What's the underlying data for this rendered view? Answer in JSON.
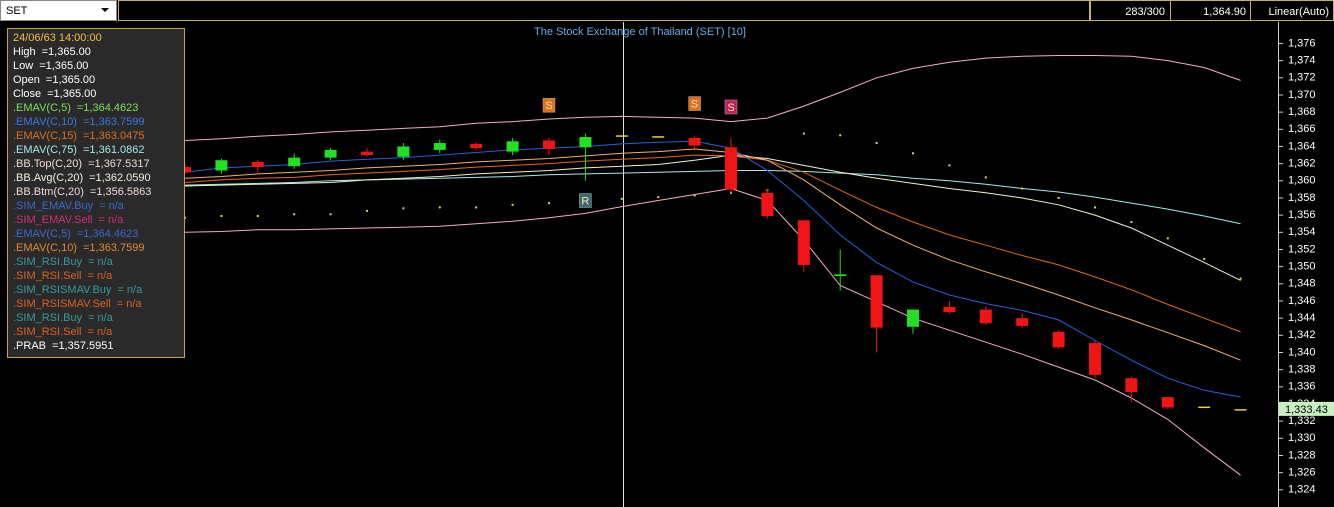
{
  "toolbar": {
    "symbol": "SET",
    "count": "283/300",
    "price": "1,364.90",
    "scale": "Linear(Auto)"
  },
  "info_panel": {
    "lines": [
      {
        "label": "24/06/63 14:00:00",
        "color": "#f0c040"
      },
      {
        "label": "High",
        "value": "=1,365.00",
        "color": "#ffffff"
      },
      {
        "label": "Low",
        "value": "=1,365.00",
        "color": "#ffffff"
      },
      {
        "label": "Open",
        "value": "=1,365.00",
        "color": "#ffffff"
      },
      {
        "label": "Close",
        "value": "=1,365.00",
        "color": "#ffffff"
      },
      {
        "label": ".EMAV(C,5)",
        "value": "=1,364.4623",
        "color": "#7ce05a"
      },
      {
        "label": ".EMAV(C,10)",
        "value": "=1,363.7599",
        "color": "#3a78e0"
      },
      {
        "label": ".EMAV(C,15)",
        "value": "=1,363.0475",
        "color": "#e0701a"
      },
      {
        "label": ".EMAV(C,75)",
        "value": "=1,361.0862",
        "color": "#a8e8e8"
      },
      {
        "label": ".BB.Top(C,20)",
        "value": "=1,367.5317",
        "color": "#f0d8d8"
      },
      {
        "label": ".BB.Avg(C,20)",
        "value": "=1,362.0590",
        "color": "#f0f0e0"
      },
      {
        "label": ".BB.Btm(C,20)",
        "value": "=1,356.5863",
        "color": "#f0d8d8"
      },
      {
        "label": ".SIM_EMAV.Buy",
        "value": "= n/a",
        "color": "#3a6ad0"
      },
      {
        "label": ".SIM_EMAV.Sell",
        "value": "= n/a",
        "color": "#d03070"
      },
      {
        "label": ".EMAV(C,5)",
        "value": "=1,364.4623",
        "color": "#3a6ad0"
      },
      {
        "label": ".EMAV(C,10)",
        "value": "=1,363.7599",
        "color": "#e08a30"
      },
      {
        "label": ".SIM_RSI.Buy",
        "value": "= n/a",
        "color": "#3a9a9a"
      },
      {
        "label": ".SIM_RSI.Sell",
        "value": "= n/a",
        "color": "#e06020"
      },
      {
        "label": ".SIM_RSISMAV.Buy",
        "value": "= n/a",
        "color": "#3a9a9a"
      },
      {
        "label": ".SIM_RSISMAV.Sell",
        "value": "= n/a",
        "color": "#e06020"
      },
      {
        "label": ".SIM_RSI.Buy",
        "value": "= n/a",
        "color": "#3a9a9a"
      },
      {
        "label": ".SIM_RSI.Sell",
        "value": "= n/a",
        "color": "#e06020"
      },
      {
        "label": ".PRAB",
        "value": "=1,357.5951",
        "color": "#ffffff"
      }
    ]
  },
  "chart_data": {
    "type": "candlestick",
    "title": "The Stock Exchange of Thailand (SET) [10]",
    "categories": [
      null,
      null,
      null,
      null,
      null,
      null,
      null,
      null,
      null,
      null,
      null,
      null,
      null,
      null,
      null,
      null,
      null,
      null,
      null,
      null,
      null,
      null,
      null,
      null,
      null,
      null,
      null,
      null,
      null,
      null
    ],
    "open": [
      1361.6,
      1361.2,
      1362.2,
      1361.7,
      1362.7,
      1363.4,
      1362.8,
      1363.6,
      1364.3,
      1363.4,
      1364.7,
      1363.9,
      1365.3,
      1365.2,
      1365.0,
      1363.9,
      1358.6,
      1355.4,
      1348.9,
      1349.0,
      1343.0,
      1345.3,
      1345.0,
      1344.0,
      1342.4,
      1341.1,
      1337.0,
      1334.8,
      1333.7,
      1333.4
    ],
    "high": [
      1362.0,
      1362.6,
      1362.4,
      1363.2,
      1363.8,
      1363.8,
      1364.4,
      1364.8,
      1364.5,
      1365.0,
      1365.0,
      1365.5,
      1365.3,
      1365.2,
      1365.2,
      1365.0,
      1359.0,
      1355.4,
      1352.0,
      1349.0,
      1345.0,
      1346.0,
      1345.4,
      1344.6,
      1342.6,
      1341.4,
      1337.2,
      1334.8,
      1333.7,
      1333.4
    ],
    "low": [
      1360.8,
      1360.8,
      1361.0,
      1361.4,
      1362.4,
      1362.8,
      1362.4,
      1363.2,
      1363.6,
      1363.0,
      1363.0,
      1360.0,
      1365.3,
      1365.2,
      1363.8,
      1358.6,
      1355.6,
      1349.4,
      1347.2,
      1340.0,
      1342.2,
      1344.5,
      1343.2,
      1342.8,
      1340.4,
      1337.0,
      1334.2,
      1333.4,
      1333.7,
      1333.4
    ],
    "close": [
      1361.0,
      1362.4,
      1361.6,
      1362.7,
      1363.6,
      1363.0,
      1364.0,
      1364.4,
      1363.8,
      1364.6,
      1363.7,
      1365.1,
      1365.3,
      1365.2,
      1364.1,
      1359.0,
      1355.9,
      1350.2,
      1349.1,
      1342.9,
      1345.0,
      1344.7,
      1343.4,
      1343.1,
      1340.6,
      1337.4,
      1335.4,
      1333.6,
      1333.7,
      1333.4
    ],
    "up_color": "#22e022",
    "down_color": "#f01414",
    "flat_color": "#e8d040",
    "series": [
      {
        "color": "#f0b0c0",
        "values": [
          1364.7,
          1364.9,
          1365.2,
          1365.4,
          1365.7,
          1365.9,
          1366.1,
          1366.3,
          1366.7,
          1366.9,
          1367.2,
          1367.4,
          1367.5,
          1367.4,
          1367.3,
          1366.9,
          1367.3,
          1368.7,
          1370.3,
          1372.0,
          1373.1,
          1373.8,
          1374.3,
          1374.5,
          1374.6,
          1374.6,
          1374.5,
          1374.0,
          1373.2,
          1371.7
        ]
      },
      {
        "color": "#f0b0c0",
        "values": [
          1354.0,
          1354.1,
          1354.3,
          1354.3,
          1354.4,
          1354.5,
          1354.6,
          1354.7,
          1355.0,
          1355.3,
          1355.7,
          1356.2,
          1357.0,
          1357.7,
          1358.4,
          1359.1,
          1357.7,
          1353.1,
          1347.8,
          1345.9,
          1344.0,
          1342.6,
          1341.2,
          1339.8,
          1338.3,
          1336.8,
          1334.7,
          1332.2,
          1328.9,
          1325.7
        ]
      },
      {
        "color": "#a8e8e8",
        "values": [
          1359.5,
          1359.6,
          1359.7,
          1359.8,
          1360.0,
          1360.1,
          1360.2,
          1360.3,
          1360.4,
          1360.5,
          1360.7,
          1360.8,
          1360.9,
          1361.0,
          1361.1,
          1361.2,
          1361.2,
          1361.1,
          1360.9,
          1360.7,
          1360.3,
          1360.0,
          1359.6,
          1359.1,
          1358.7,
          1358.1,
          1357.4,
          1356.7,
          1355.9,
          1355.0
        ]
      },
      {
        "color": "#f0f0d0",
        "values": [
          1359.4,
          1359.5,
          1359.6,
          1359.7,
          1359.8,
          1360.1,
          1360.3,
          1360.5,
          1360.8,
          1361.0,
          1361.2,
          1361.5,
          1361.7,
          1361.9,
          1362.4,
          1363.0,
          1362.6,
          1361.8,
          1361.0,
          1360.3,
          1359.7,
          1359.1,
          1358.6,
          1358.0,
          1357.2,
          1356.0,
          1354.5,
          1352.5,
          1350.5,
          1348.4
        ]
      },
      {
        "color": "#e06a10",
        "values": [
          1359.8,
          1360.1,
          1360.3,
          1360.4,
          1360.7,
          1360.9,
          1361.1,
          1361.3,
          1361.6,
          1361.8,
          1362.0,
          1362.3,
          1362.5,
          1362.7,
          1363.0,
          1362.9,
          1362.4,
          1361.0,
          1358.9,
          1356.9,
          1355.2,
          1353.7,
          1352.5,
          1351.3,
          1350.2,
          1348.8,
          1347.3,
          1345.6,
          1344.0,
          1342.4
        ]
      },
      {
        "color": "#f0b070",
        "values": [
          1360.3,
          1360.5,
          1360.8,
          1361.0,
          1361.2,
          1361.5,
          1361.7,
          1361.9,
          1362.2,
          1362.4,
          1362.6,
          1362.9,
          1363.2,
          1363.4,
          1363.7,
          1363.3,
          1362.4,
          1360.1,
          1357.2,
          1354.5,
          1352.5,
          1350.8,
          1349.4,
          1348.1,
          1346.7,
          1345.2,
          1343.8,
          1342.3,
          1340.8,
          1339.1
        ]
      },
      {
        "color": "#2a5fd8",
        "values": [
          1361.0,
          1361.5,
          1361.7,
          1361.9,
          1362.3,
          1362.5,
          1362.7,
          1363.0,
          1363.3,
          1363.6,
          1363.8,
          1364.0,
          1364.3,
          1364.5,
          1364.6,
          1363.8,
          1361.2,
          1357.7,
          1353.7,
          1350.5,
          1348.2,
          1346.7,
          1345.7,
          1344.9,
          1343.8,
          1341.4,
          1339.1,
          1337.0,
          1335.6,
          1334.8
        ]
      },
      {
        "color": "#e8d060",
        "style": "dots",
        "values": [
          1355.7,
          1355.9,
          1355.9,
          1356.1,
          1356.1,
          1356.5,
          1356.8,
          1356.9,
          1356.9,
          1357.2,
          1357.4,
          1357.7,
          1357.9,
          1358.1,
          1358.3,
          1358.6,
          1358.9,
          1365.5,
          1365.3,
          1364.4,
          1363.2,
          1361.8,
          1360.4,
          1359.1,
          1358.0,
          1356.9,
          1355.2,
          1353.3,
          1350.9,
          1348.6
        ]
      }
    ],
    "markers": [
      {
        "text": "S",
        "at": 10,
        "value": 1368.8,
        "color": "#e07020"
      },
      {
        "text": "R",
        "at": 11,
        "value": 1357.7,
        "color": "#3a6a78"
      },
      {
        "text": "S",
        "at": 14,
        "value": 1369.0,
        "color": "#e07020"
      },
      {
        "text": "S",
        "at": 15,
        "value": 1368.6,
        "color": "#c02060"
      }
    ],
    "last_price": {
      "value": 1333.43,
      "label": "1,333.43"
    },
    "ylim": [
      1322.0,
      1378.5
    ],
    "yticks": [
      {
        "value": 1324,
        "label": "1,324"
      },
      {
        "value": 1326,
        "label": "1,326"
      },
      {
        "value": 1328,
        "label": "1,328"
      },
      {
        "value": 1330,
        "label": "1,330"
      },
      {
        "value": 1332,
        "label": "1,332"
      },
      {
        "value": 1334,
        "label": "1,334"
      },
      {
        "value": 1336,
        "label": "1,336"
      },
      {
        "value": 1338,
        "label": "1,338"
      },
      {
        "value": 1340,
        "label": "1,340"
      },
      {
        "value": 1342,
        "label": "1,342"
      },
      {
        "value": 1344,
        "label": "1,344"
      },
      {
        "value": 1346,
        "label": "1,346"
      },
      {
        "value": 1348,
        "label": "1,348"
      },
      {
        "value": 1350,
        "label": "1,350"
      },
      {
        "value": 1352,
        "label": "1,352"
      },
      {
        "value": 1354,
        "label": "1,354"
      },
      {
        "value": 1356,
        "label": "1,356"
      },
      {
        "value": 1358,
        "label": "1,358"
      },
      {
        "value": 1360,
        "label": "1,360"
      },
      {
        "value": 1362,
        "label": "1,362"
      },
      {
        "value": 1364,
        "label": "1,364"
      },
      {
        "value": 1366,
        "label": "1,366"
      },
      {
        "value": 1368,
        "label": "1,368"
      },
      {
        "value": 1370,
        "label": "1,370"
      },
      {
        "value": 1372,
        "label": "1,372"
      },
      {
        "value": 1374,
        "label": "1,374"
      },
      {
        "value": 1376,
        "label": "1,376"
      }
    ],
    "grid": false
  }
}
